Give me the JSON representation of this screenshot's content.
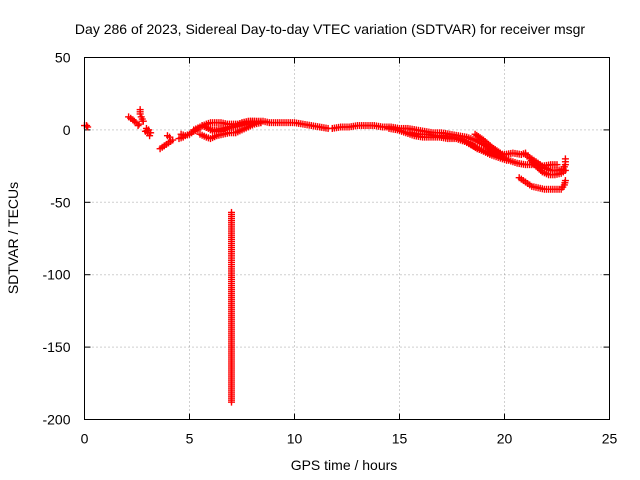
{
  "chart_data": {
    "type": "scatter",
    "title": "Day 286 of 2023, Sidereal Day-to-day VTEC variation (SDTVAR) for receiver msgr",
    "xlabel": "GPS time / hours",
    "ylabel": "SDTVAR / TECUs",
    "xlim": [
      0,
      25
    ],
    "ylim": [
      -200,
      50
    ],
    "xticks": [
      0,
      5,
      10,
      15,
      20,
      25
    ],
    "yticks": [
      50,
      0,
      -50,
      -100,
      -150,
      -200
    ],
    "xtick_labels": [
      "0",
      "5",
      "10",
      "15",
      "20",
      "25"
    ],
    "ytick_labels": [
      "50",
      "0",
      "-50",
      "-100",
      "-150",
      "-200"
    ],
    "grid": true,
    "marker": "+",
    "color": "#ff0000",
    "series": [
      {
        "name": "SDTVAR",
        "segments": [
          [
            [
              0.0,
              3
            ],
            [
              0.1,
              3
            ],
            [
              0.15,
              2
            ]
          ],
          [
            [
              2.1,
              9
            ],
            [
              2.3,
              7
            ],
            [
              2.45,
              5
            ],
            [
              2.55,
              3
            ],
            [
              2.6,
              4
            ]
          ],
          [
            [
              2.65,
              14
            ],
            [
              2.65,
              11
            ],
            [
              2.7,
              9
            ],
            [
              2.8,
              6
            ]
          ],
          [
            [
              2.9,
              -1
            ],
            [
              2.95,
              1
            ],
            [
              3.0,
              -2
            ],
            [
              3.05,
              0
            ],
            [
              3.1,
              -4
            ],
            [
              3.15,
              -2
            ]
          ],
          [
            [
              3.6,
              -13
            ],
            [
              3.8,
              -11
            ],
            [
              4.0,
              -9
            ],
            [
              4.2,
              -7
            ]
          ],
          [
            [
              3.95,
              -4
            ],
            [
              4.05,
              -5
            ]
          ],
          [
            [
              4.6,
              -3
            ],
            [
              4.8,
              -4
            ],
            [
              5.0,
              -3
            ],
            [
              5.2,
              -1
            ],
            [
              5.4,
              0
            ]
          ],
          [
            [
              4.5,
              -6
            ],
            [
              4.7,
              -5
            ]
          ],
          [
            [
              5.2,
              0
            ],
            [
              5.5,
              2
            ],
            [
              5.8,
              4
            ],
            [
              6.0,
              5
            ],
            [
              6.2,
              5
            ],
            [
              6.5,
              5
            ],
            [
              6.8,
              4
            ],
            [
              7.0,
              4
            ],
            [
              7.3,
              4
            ],
            [
              7.6,
              5
            ],
            [
              7.9,
              6
            ],
            [
              8.2,
              6
            ],
            [
              8.5,
              6
            ],
            [
              8.8,
              5
            ],
            [
              9.2,
              5
            ],
            [
              9.6,
              5
            ],
            [
              10.0,
              5
            ],
            [
              10.4,
              4
            ],
            [
              10.8,
              3
            ],
            [
              11.2,
              2
            ],
            [
              11.6,
              1
            ]
          ],
          [
            [
              5.5,
              -3
            ],
            [
              5.8,
              -5
            ],
            [
              6.0,
              -6
            ],
            [
              6.3,
              -4
            ],
            [
              6.6,
              -3
            ],
            [
              6.9,
              -2
            ],
            [
              7.2,
              -2
            ],
            [
              7.5,
              0
            ],
            [
              7.8,
              2
            ],
            [
              8.1,
              4
            ],
            [
              8.4,
              5
            ]
          ],
          [
            [
              5.6,
              3
            ],
            [
              5.9,
              1
            ],
            [
              6.2,
              -1
            ],
            [
              6.5,
              -1
            ],
            [
              6.8,
              1
            ],
            [
              7.1,
              2
            ],
            [
              7.4,
              3
            ],
            [
              7.7,
              4
            ],
            [
              8.0,
              5
            ]
          ],
          [
            [
              6.0,
              0
            ],
            [
              6.3,
              0
            ],
            [
              6.6,
              1
            ],
            [
              6.9,
              2
            ],
            [
              7.2,
              3
            ],
            [
              7.5,
              5
            ],
            [
              7.8,
              6
            ],
            [
              8.1,
              6
            ],
            [
              8.4,
              5
            ]
          ],
          [
            [
              7.0,
              -57
            ],
            [
              7.0,
              -87
            ],
            [
              7.0,
              -96
            ],
            [
              7.0,
              -109
            ],
            [
              7.0,
              -188
            ]
          ],
          [
            [
              11.8,
              1
            ],
            [
              12.2,
              2
            ],
            [
              12.6,
              2
            ],
            [
              13.0,
              3
            ],
            [
              13.4,
              3
            ],
            [
              13.8,
              3
            ],
            [
              14.2,
              2
            ],
            [
              14.6,
              2
            ],
            [
              15.0,
              1
            ],
            [
              15.4,
              1
            ],
            [
              15.8,
              0
            ],
            [
              16.2,
              -1
            ],
            [
              16.6,
              -2
            ],
            [
              17.0,
              -2
            ],
            [
              17.4,
              -3
            ],
            [
              17.8,
              -4
            ],
            [
              18.2,
              -5
            ],
            [
              18.6,
              -7
            ],
            [
              19.0,
              -10
            ],
            [
              19.4,
              -14
            ],
            [
              19.8,
              -18
            ],
            [
              20.2,
              -21
            ],
            [
              20.6,
              -23
            ],
            [
              21.0,
              -24
            ],
            [
              21.4,
              -24
            ],
            [
              21.8,
              -25
            ],
            [
              22.2,
              -24
            ],
            [
              22.5,
              -24
            ]
          ],
          [
            [
              14.5,
              1
            ],
            [
              14.9,
              0
            ],
            [
              15.3,
              -2
            ],
            [
              15.7,
              -4
            ],
            [
              16.1,
              -5
            ],
            [
              16.5,
              -5
            ],
            [
              16.9,
              -5
            ],
            [
              17.3,
              -6
            ],
            [
              17.7,
              -6
            ],
            [
              18.1,
              -8
            ],
            [
              18.5,
              -11
            ],
            [
              18.9,
              -14
            ],
            [
              19.3,
              -17
            ],
            [
              19.7,
              -19
            ],
            [
              20.1,
              -21
            ]
          ],
          [
            [
              15.5,
              -2
            ],
            [
              15.9,
              -3
            ],
            [
              16.3,
              -3
            ],
            [
              16.7,
              -4
            ],
            [
              17.1,
              -4
            ],
            [
              17.5,
              -5
            ],
            [
              17.9,
              -6
            ],
            [
              18.3,
              -9
            ],
            [
              18.7,
              -13
            ],
            [
              19.1,
              -15
            ],
            [
              19.5,
              -16
            ],
            [
              19.9,
              -18
            ]
          ],
          [
            [
              18.6,
              -3
            ],
            [
              19.0,
              -7
            ],
            [
              19.4,
              -12
            ],
            [
              19.8,
              -16
            ]
          ],
          [
            [
              19.2,
              -15
            ],
            [
              19.6,
              -16
            ],
            [
              20.0,
              -17
            ],
            [
              20.4,
              -16
            ],
            [
              20.8,
              -17
            ],
            [
              21.0,
              -16
            ]
          ],
          [
            [
              21.0,
              -17
            ],
            [
              21.3,
              -20
            ],
            [
              21.6,
              -23
            ],
            [
              21.9,
              -26
            ],
            [
              22.2,
              -28
            ],
            [
              22.5,
              -28
            ],
            [
              22.8,
              -27
            ],
            [
              22.9,
              -24
            ],
            [
              22.9,
              -20
            ]
          ],
          [
            [
              21.2,
              -20
            ],
            [
              21.5,
              -25
            ],
            [
              21.8,
              -29
            ],
            [
              22.1,
              -31
            ],
            [
              22.4,
              -31
            ],
            [
              22.7,
              -30
            ],
            [
              22.9,
              -28
            ]
          ],
          [
            [
              20.7,
              -33
            ],
            [
              21.0,
              -36
            ],
            [
              21.3,
              -39
            ],
            [
              21.6,
              -40
            ],
            [
              21.9,
              -41
            ],
            [
              22.2,
              -41
            ],
            [
              22.5,
              -41
            ],
            [
              22.7,
              -41
            ],
            [
              22.85,
              -38
            ],
            [
              22.9,
              -35
            ]
          ]
        ]
      }
    ]
  }
}
